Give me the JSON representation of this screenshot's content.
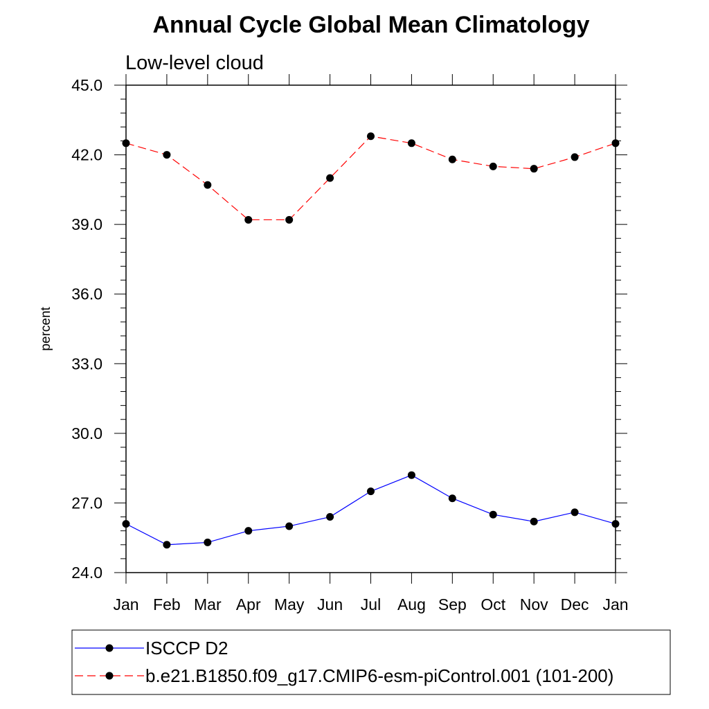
{
  "chart_data": {
    "type": "line",
    "title": "Annual Cycle Global Mean Climatology",
    "subtitle": "Low-level cloud",
    "xlabel": "",
    "ylabel": "percent",
    "categories": [
      "Jan",
      "Feb",
      "Mar",
      "Apr",
      "May",
      "Jun",
      "Jul",
      "Aug",
      "Sep",
      "Oct",
      "Nov",
      "Dec",
      "Jan"
    ],
    "ylim": [
      24.0,
      45.0
    ],
    "yticks": [
      "24.0",
      "27.0",
      "30.0",
      "33.0",
      "36.0",
      "39.0",
      "42.0",
      "45.0"
    ],
    "grid": false,
    "legend_position": "bottom",
    "series": [
      {
        "name": "ISCCP D2",
        "color": "#0000ff",
        "style": "solid",
        "marker": "filled-circle",
        "values": [
          26.1,
          25.2,
          25.3,
          25.8,
          26.0,
          26.4,
          27.5,
          28.2,
          27.2,
          26.5,
          26.2,
          26.6,
          26.1
        ]
      },
      {
        "name": "b.e21.B1850.f09_g17.CMIP6-esm-piControl.001 (101-200)",
        "color": "#ff0000",
        "style": "dashed",
        "marker": "filled-circle",
        "values": [
          42.5,
          42.0,
          40.7,
          39.2,
          39.2,
          41.0,
          42.8,
          42.5,
          41.8,
          41.5,
          41.4,
          41.9,
          42.5
        ]
      }
    ]
  }
}
